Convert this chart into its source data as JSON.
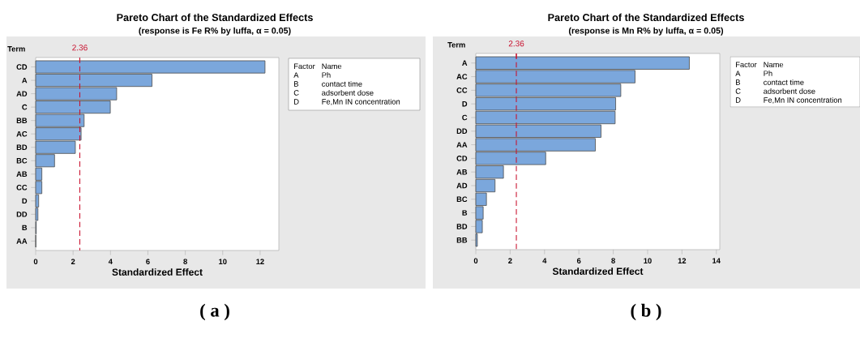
{
  "chart_data": [
    {
      "type": "bar",
      "orientation": "horizontal",
      "title": "Pareto Chart of the Standardized Effects",
      "subtitle": "(response is Fe R% by luffa, α = 0.05)",
      "xlabel": "Standardized Effect",
      "ylabel": "Term",
      "categories": [
        "CD",
        "A",
        "AD",
        "C",
        "BB",
        "AC",
        "BD",
        "BC",
        "AB",
        "CC",
        "D",
        "DD",
        "B",
        "AA"
      ],
      "values": [
        12.26,
        6.22,
        4.33,
        3.99,
        2.59,
        2.43,
        2.12,
        1.01,
        0.33,
        0.33,
        0.16,
        0.12,
        0.03,
        0.01
      ],
      "color": "#7ba7dc",
      "xlim": [
        0,
        13
      ],
      "xticks": [
        0,
        2,
        4,
        6,
        8,
        10,
        12
      ],
      "ref_lines": [
        {
          "axis": "x",
          "value": 2.36,
          "label": "2.36",
          "color": "#c8102e",
          "line_style": "dashed"
        }
      ],
      "annotations": [
        "( a )",
        "Factor",
        "Name",
        "A",
        "Ph",
        "B",
        "contact time",
        "C",
        "adsorbent dose",
        "D",
        "Fe,Mn IN concentration"
      ]
    },
    {
      "type": "bar",
      "orientation": "horizontal",
      "title": "Pareto Chart of the Standardized Effects",
      "subtitle": "(response is Mn R% by luffa, α = 0.05)",
      "xlabel": "Standardized Effect",
      "ylabel": "Term",
      "categories": [
        "A",
        "AC",
        "CC",
        "D",
        "C",
        "DD",
        "AA",
        "CD",
        "AB",
        "AD",
        "BC",
        "B",
        "BD",
        "BB"
      ],
      "values": [
        12.43,
        9.27,
        8.44,
        8.14,
        8.11,
        7.29,
        6.96,
        4.07,
        1.61,
        1.12,
        0.62,
        0.43,
        0.38,
        0.09
      ],
      "color": "#7ba7dc",
      "xlim": [
        0,
        14.2
      ],
      "xticks": [
        0,
        2,
        4,
        6,
        8,
        10,
        12,
        14
      ],
      "ref_lines": [
        {
          "axis": "x",
          "value": 2.36,
          "label": "2.36",
          "color": "#c8102e",
          "line_style": "dashed"
        }
      ],
      "annotations": [
        "( b )",
        "Factor",
        "Name",
        "A",
        "Ph",
        "B",
        "contact time",
        "C",
        "adsorbent dose",
        "D",
        "Fe,Mn IN concentration"
      ]
    }
  ]
}
